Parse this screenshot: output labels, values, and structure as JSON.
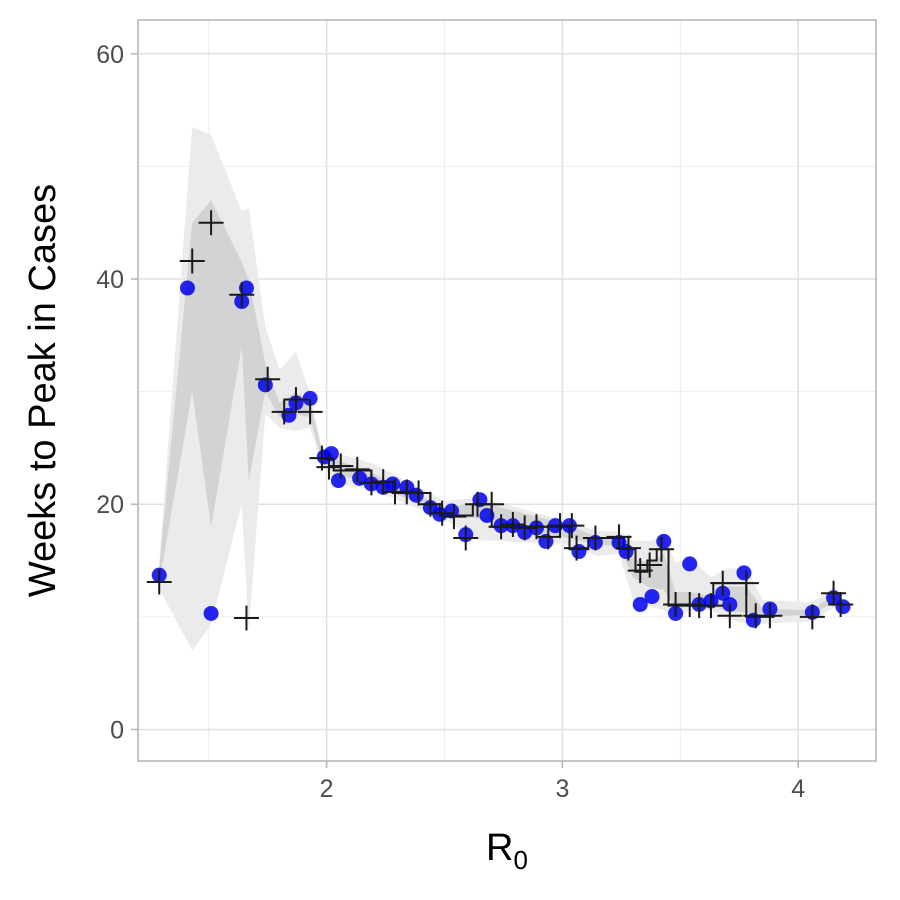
{
  "chart_data": {
    "type": "scatter",
    "title": "",
    "xlabel": "R",
    "xlabel_subscript": "0",
    "ylabel": "Weeks to Peak in Cases",
    "xlim": [
      1.2,
      4.33
    ],
    "ylim": [
      -2.8,
      63
    ],
    "x_ticks": [
      2,
      3,
      4
    ],
    "x_tick_labels": [
      "2",
      "3",
      "4"
    ],
    "y_ticks": [
      0,
      20,
      40,
      60
    ],
    "y_tick_labels": [
      "0",
      "20",
      "40",
      "60"
    ],
    "grid": true,
    "legend": "none",
    "colors": {
      "points": "#0000ee",
      "crosses": "#1a1a1a",
      "band_outer": "#ebebeb",
      "band_inner": "#d3d3d3",
      "grid": "#e0e0e0",
      "panel_border": "#b3b3b3"
    },
    "points": [
      {
        "x": 1.29,
        "y": 13.7
      },
      {
        "x": 1.41,
        "y": 39.2
      },
      {
        "x": 1.51,
        "y": 10.3
      },
      {
        "x": 1.64,
        "y": 38.0
      },
      {
        "x": 1.66,
        "y": 39.2
      },
      {
        "x": 1.74,
        "y": 30.6
      },
      {
        "x": 1.84,
        "y": 27.9
      },
      {
        "x": 1.87,
        "y": 29.0
      },
      {
        "x": 1.93,
        "y": 29.4
      },
      {
        "x": 1.99,
        "y": 24.2
      },
      {
        "x": 2.02,
        "y": 24.5
      },
      {
        "x": 2.05,
        "y": 22.1
      },
      {
        "x": 2.14,
        "y": 22.3
      },
      {
        "x": 2.19,
        "y": 21.8
      },
      {
        "x": 2.24,
        "y": 21.5
      },
      {
        "x": 2.28,
        "y": 21.8
      },
      {
        "x": 2.34,
        "y": 21.5
      },
      {
        "x": 2.38,
        "y": 20.8
      },
      {
        "x": 2.44,
        "y": 19.7
      },
      {
        "x": 2.48,
        "y": 19.1
      },
      {
        "x": 2.53,
        "y": 19.4
      },
      {
        "x": 2.59,
        "y": 17.3
      },
      {
        "x": 2.65,
        "y": 20.4
      },
      {
        "x": 2.68,
        "y": 19.0
      },
      {
        "x": 2.74,
        "y": 18.1
      },
      {
        "x": 2.79,
        "y": 18.1
      },
      {
        "x": 2.84,
        "y": 17.5
      },
      {
        "x": 2.89,
        "y": 17.9
      },
      {
        "x": 2.93,
        "y": 16.7
      },
      {
        "x": 2.97,
        "y": 18.1
      },
      {
        "x": 3.03,
        "y": 18.1
      },
      {
        "x": 3.07,
        "y": 15.8
      },
      {
        "x": 3.14,
        "y": 16.6
      },
      {
        "x": 3.24,
        "y": 16.6
      },
      {
        "x": 3.27,
        "y": 15.8
      },
      {
        "x": 3.33,
        "y": 11.1
      },
      {
        "x": 3.38,
        "y": 11.8
      },
      {
        "x": 3.43,
        "y": 16.7
      },
      {
        "x": 3.48,
        "y": 10.3
      },
      {
        "x": 3.54,
        "y": 14.7
      },
      {
        "x": 3.58,
        "y": 11.1
      },
      {
        "x": 3.63,
        "y": 11.4
      },
      {
        "x": 3.68,
        "y": 12.1
      },
      {
        "x": 3.71,
        "y": 11.1
      },
      {
        "x": 3.77,
        "y": 13.9
      },
      {
        "x": 3.81,
        "y": 9.7
      },
      {
        "x": 3.88,
        "y": 10.7
      },
      {
        "x": 4.06,
        "y": 10.4
      },
      {
        "x": 4.15,
        "y": 11.7
      },
      {
        "x": 4.19,
        "y": 10.9
      }
    ],
    "crosses": [
      {
        "x": 1.29,
        "y": 13.1
      },
      {
        "x": 1.43,
        "y": 41.6
      },
      {
        "x": 1.51,
        "y": 45.0
      },
      {
        "x": 1.64,
        "y": 38.6
      },
      {
        "x": 1.66,
        "y": 9.9
      },
      {
        "x": 1.75,
        "y": 31.1
      },
      {
        "x": 1.82,
        "y": 28.2
      },
      {
        "x": 1.87,
        "y": 29.3
      },
      {
        "x": 1.93,
        "y": 28.2
      },
      {
        "x": 1.98,
        "y": 24.1
      },
      {
        "x": 2.01,
        "y": 23.3
      },
      {
        "x": 2.06,
        "y": 23.4
      },
      {
        "x": 2.13,
        "y": 23.1
      },
      {
        "x": 2.19,
        "y": 21.9
      },
      {
        "x": 2.24,
        "y": 22.0
      },
      {
        "x": 2.29,
        "y": 21.1
      },
      {
        "x": 2.34,
        "y": 21.1
      },
      {
        "x": 2.39,
        "y": 21.0
      },
      {
        "x": 2.44,
        "y": 20.0
      },
      {
        "x": 2.49,
        "y": 19.2
      },
      {
        "x": 2.54,
        "y": 18.9
      },
      {
        "x": 2.59,
        "y": 17.0
      },
      {
        "x": 2.64,
        "y": 20.0
      },
      {
        "x": 2.7,
        "y": 20.0
      },
      {
        "x": 2.74,
        "y": 18.0
      },
      {
        "x": 2.79,
        "y": 18.2
      },
      {
        "x": 2.84,
        "y": 17.9
      },
      {
        "x": 2.89,
        "y": 18.0
      },
      {
        "x": 2.94,
        "y": 17.1
      },
      {
        "x": 2.99,
        "y": 18.1
      },
      {
        "x": 3.04,
        "y": 18.1
      },
      {
        "x": 3.06,
        "y": 16.1
      },
      {
        "x": 3.14,
        "y": 17.0
      },
      {
        "x": 3.24,
        "y": 17.1
      },
      {
        "x": 3.28,
        "y": 16.1
      },
      {
        "x": 3.33,
        "y": 14.1
      },
      {
        "x": 3.37,
        "y": 14.6
      },
      {
        "x": 3.42,
        "y": 16.0
      },
      {
        "x": 3.48,
        "y": 11.1
      },
      {
        "x": 3.54,
        "y": 11.1
      },
      {
        "x": 3.58,
        "y": 11.0
      },
      {
        "x": 3.63,
        "y": 11.0
      },
      {
        "x": 3.68,
        "y": 13.0
      },
      {
        "x": 3.71,
        "y": 10.1
      },
      {
        "x": 3.78,
        "y": 13.0
      },
      {
        "x": 3.82,
        "y": 10.1
      },
      {
        "x": 3.88,
        "y": 10.1
      },
      {
        "x": 4.06,
        "y": 10.0
      },
      {
        "x": 4.15,
        "y": 12.1
      },
      {
        "x": 4.18,
        "y": 11.1
      }
    ],
    "band_outer_upper": [
      [
        1.29,
        14.8
      ],
      [
        1.43,
        53.5
      ],
      [
        1.51,
        52.8
      ],
      [
        1.64,
        46.0
      ],
      [
        1.67,
        46.3
      ],
      [
        1.74,
        35.8
      ],
      [
        1.8,
        32.0
      ],
      [
        1.87,
        33.5
      ],
      [
        1.93,
        29.8
      ],
      [
        1.98,
        25.0
      ],
      [
        2.05,
        24.5
      ],
      [
        2.2,
        23.6
      ],
      [
        2.5,
        20.3
      ],
      [
        2.65,
        20.6
      ],
      [
        3.0,
        18.6
      ],
      [
        3.15,
        17.6
      ],
      [
        3.24,
        17.6
      ],
      [
        3.3,
        16.8
      ],
      [
        3.37,
        16.7
      ],
      [
        3.43,
        17.2
      ],
      [
        3.48,
        14.8
      ],
      [
        3.54,
        15.2
      ],
      [
        3.63,
        13.5
      ],
      [
        3.7,
        14.3
      ],
      [
        3.78,
        14.3
      ],
      [
        3.85,
        11.5
      ],
      [
        4.06,
        11.3
      ],
      [
        4.15,
        12.6
      ],
      [
        4.19,
        11.5
      ]
    ],
    "band_outer_lower": [
      [
        4.19,
        10.4
      ],
      [
        4.15,
        10.8
      ],
      [
        4.06,
        9.6
      ],
      [
        3.85,
        9.4
      ],
      [
        3.78,
        9.4
      ],
      [
        3.7,
        9.8
      ],
      [
        3.63,
        10.6
      ],
      [
        3.54,
        10.6
      ],
      [
        3.48,
        9.8
      ],
      [
        3.43,
        10.6
      ],
      [
        3.37,
        10.9
      ],
      [
        3.3,
        11.5
      ],
      [
        3.24,
        15.6
      ],
      [
        3.15,
        15.4
      ],
      [
        3.0,
        16.5
      ],
      [
        2.65,
        16.8
      ],
      [
        2.5,
        18.6
      ],
      [
        2.2,
        21.3
      ],
      [
        2.05,
        21.8
      ],
      [
        1.98,
        23.5
      ],
      [
        1.93,
        26.8
      ],
      [
        1.87,
        26.5
      ],
      [
        1.8,
        26.8
      ],
      [
        1.74,
        28.0
      ],
      [
        1.67,
        8.8
      ],
      [
        1.64,
        20.0
      ],
      [
        1.51,
        9.3
      ],
      [
        1.43,
        7.0
      ],
      [
        1.29,
        12.5
      ]
    ],
    "band_inner_upper": [
      [
        1.29,
        14.3
      ],
      [
        1.43,
        45.0
      ],
      [
        1.51,
        47.0
      ],
      [
        1.64,
        41.5
      ],
      [
        1.67,
        40.0
      ],
      [
        1.74,
        32.5
      ],
      [
        1.8,
        29.0
      ],
      [
        1.87,
        30.0
      ],
      [
        1.93,
        29.0
      ],
      [
        1.98,
        24.7
      ],
      [
        2.05,
        23.9
      ],
      [
        2.2,
        22.7
      ],
      [
        2.5,
        19.7
      ],
      [
        2.65,
        20.2
      ],
      [
        3.0,
        18.3
      ],
      [
        3.15,
        17.1
      ],
      [
        3.24,
        17.1
      ],
      [
        3.3,
        15.2
      ],
      [
        3.37,
        14.8
      ],
      [
        3.43,
        15.6
      ],
      [
        3.48,
        12.2
      ],
      [
        3.54,
        12.2
      ],
      [
        3.63,
        11.8
      ],
      [
        3.7,
        12.7
      ],
      [
        3.78,
        12.7
      ],
      [
        3.85,
        10.7
      ],
      [
        4.06,
        10.6
      ],
      [
        4.15,
        12.0
      ],
      [
        4.19,
        11.0
      ]
    ],
    "band_inner_lower": [
      [
        4.19,
        10.8
      ],
      [
        4.15,
        11.3
      ],
      [
        4.06,
        10.2
      ],
      [
        3.85,
        10.0
      ],
      [
        3.78,
        10.4
      ],
      [
        3.7,
        10.5
      ],
      [
        3.63,
        11.0
      ],
      [
        3.54,
        11.0
      ],
      [
        3.48,
        10.6
      ],
      [
        3.43,
        12.4
      ],
      [
        3.37,
        12.6
      ],
      [
        3.3,
        13.5
      ],
      [
        3.24,
        16.3
      ],
      [
        3.15,
        16.4
      ],
      [
        3.0,
        17.1
      ],
      [
        2.65,
        18.7
      ],
      [
        2.5,
        19.0
      ],
      [
        2.2,
        21.8
      ],
      [
        2.05,
        22.6
      ],
      [
        1.98,
        23.8
      ],
      [
        1.93,
        27.7
      ],
      [
        1.87,
        28.0
      ],
      [
        1.8,
        27.7
      ],
      [
        1.74,
        30.0
      ],
      [
        1.67,
        22.0
      ],
      [
        1.64,
        34.0
      ],
      [
        1.51,
        18.0
      ],
      [
        1.43,
        30.0
      ],
      [
        1.29,
        13.0
      ]
    ],
    "step_path": [
      [
        1.99,
        24.0
      ],
      [
        2.03,
        24.0
      ],
      [
        2.03,
        23.0
      ],
      [
        2.19,
        23.0
      ],
      [
        2.19,
        22.0
      ],
      [
        2.28,
        22.0
      ],
      [
        2.28,
        21.0
      ],
      [
        2.44,
        21.0
      ],
      [
        2.44,
        20.0
      ],
      [
        2.48,
        20.0
      ],
      [
        2.48,
        19.0
      ],
      [
        2.62,
        19.0
      ],
      [
        2.62,
        20.0
      ],
      [
        2.7,
        20.0
      ],
      [
        2.7,
        18.0
      ],
      [
        3.03,
        18.0
      ],
      [
        3.03,
        16.0
      ],
      [
        3.11,
        16.0
      ],
      [
        3.11,
        17.0
      ],
      [
        3.26,
        17.0
      ],
      [
        3.26,
        16.0
      ],
      [
        3.31,
        16.0
      ],
      [
        3.31,
        14.0
      ],
      [
        3.36,
        14.0
      ],
      [
        3.36,
        15.0
      ],
      [
        3.4,
        15.0
      ],
      [
        3.4,
        16.0
      ],
      [
        3.45,
        16.0
      ],
      [
        3.45,
        11.0
      ],
      [
        3.64,
        11.0
      ],
      [
        3.64,
        13.0
      ],
      [
        3.78,
        13.0
      ],
      [
        3.78,
        10.0
      ],
      [
        3.9,
        10.0
      ]
    ]
  }
}
